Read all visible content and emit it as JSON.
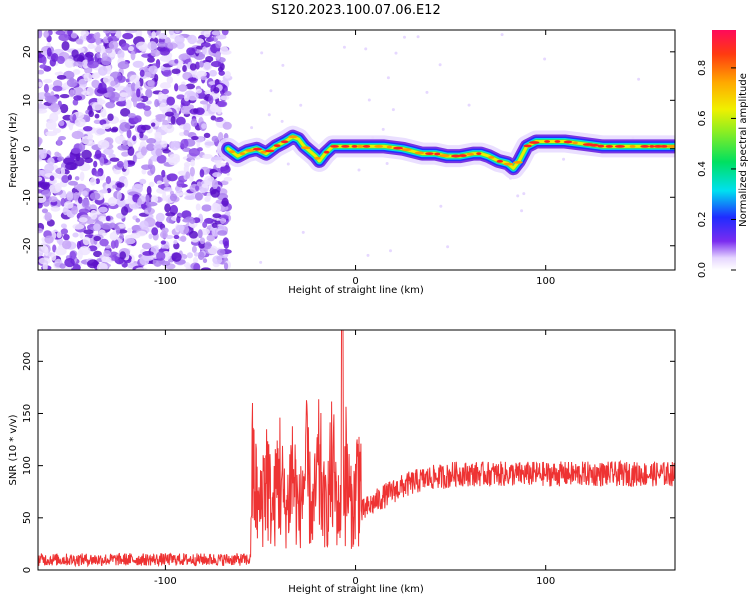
{
  "title": "S120.2023.100.07.06.E12",
  "chart_data": [
    {
      "type": "heatmap",
      "xlabel": "Height of straight line (km)",
      "ylabel": "Frequency (Hz)",
      "xlim": [
        -167,
        168
      ],
      "ylim": [
        -25,
        24.5
      ],
      "xticks": [
        -100,
        0,
        100
      ],
      "yticks": [
        -20,
        -10,
        0,
        10,
        20
      ],
      "xtick_labels": [
        "-100",
        "0",
        "100"
      ],
      "ytick_labels": [
        "-20",
        "-10",
        "0",
        "10",
        "20"
      ],
      "noise_region_x": [
        -167,
        -67
      ],
      "ridge": {
        "x": [
          -67,
          -62,
          -57,
          -52,
          -47,
          -42,
          -37,
          -33,
          -30,
          -27,
          -24,
          -21,
          -19,
          -16,
          -12,
          -5,
          5,
          15,
          25,
          30,
          35,
          42,
          48,
          55,
          62,
          66,
          70,
          75,
          80,
          83,
          86,
          90,
          95,
          100,
          110,
          120,
          130,
          140,
          150,
          160,
          168
        ],
        "freq": [
          0,
          -1.5,
          -0.5,
          0,
          -1,
          0.5,
          1.5,
          2.5,
          2,
          0.5,
          -0.5,
          -1.5,
          -2.5,
          -1,
          0.5,
          0.5,
          0.5,
          0.5,
          0,
          -0.5,
          -1,
          -1,
          -1.5,
          -1.5,
          -1,
          -1,
          -1.5,
          -2.5,
          -3,
          -4,
          -2.5,
          0.5,
          1.5,
          1.5,
          1.5,
          1,
          0.5,
          0.5,
          0.5,
          0.5,
          0.5
        ]
      },
      "colorbar": {
        "label": "Normalized spectral amplitude",
        "range": [
          0,
          0.95
        ],
        "ticks": [
          0,
          0.2,
          0.4,
          0.6,
          0.8
        ],
        "tick_labels": [
          "0.0",
          "0.2",
          "0.4",
          "0.6",
          "0.8"
        ]
      },
      "grid": false
    },
    {
      "type": "line",
      "xlabel": "Height of straight line (km)",
      "ylabel": "SNR (10 * v/v)",
      "xlim": [
        -167,
        168
      ],
      "ylim": [
        0,
        230
      ],
      "xticks": [
        -100,
        0,
        100
      ],
      "yticks": [
        0,
        50,
        100,
        150,
        200
      ],
      "xtick_labels": [
        "-100",
        "0",
        "100"
      ],
      "ytick_labels": [
        "0",
        "50",
        "100",
        "150",
        "200"
      ],
      "series": [
        {
          "color": "#ee3333",
          "segments": [
            {
              "x_range": [
                -167,
                -55
              ],
              "baseline": 10,
              "noise": 6
            },
            {
              "x_range": [
                -55,
                3
              ],
              "baseline": 75,
              "noise": 70,
              "peak": {
                "x": -7,
                "value": 230
              }
            },
            {
              "x_range": [
                3,
                50
              ],
              "baseline_start": 55,
              "baseline_end": 90,
              "noise": 12
            },
            {
              "x_range": [
                50,
                168
              ],
              "baseline": 92,
              "noise": 12
            }
          ]
        }
      ],
      "grid": false
    }
  ]
}
